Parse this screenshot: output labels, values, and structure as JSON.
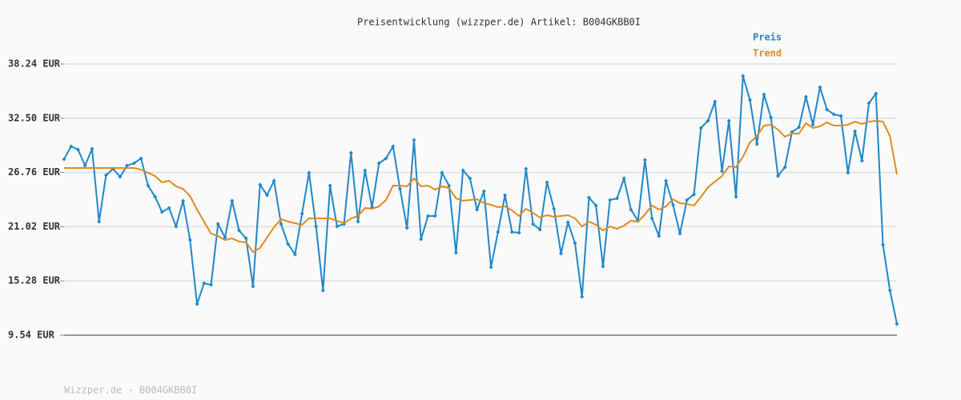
{
  "chart_data": {
    "type": "line",
    "title": "Preisentwicklung (wizzper.de) Artikel: B004GKBB0I",
    "footer": "Wizzper.de - B004GKBB0I",
    "ylim": [
      9.54,
      38.24
    ],
    "yticks": [
      {
        "value": 9.54,
        "label": "9.54 EUR"
      },
      {
        "value": 15.28,
        "label": "15.28 EUR"
      },
      {
        "value": 21.02,
        "label": "21.02 EUR"
      },
      {
        "value": 26.76,
        "label": "26.76 EUR"
      },
      {
        "value": 32.5,
        "label": "32.50 EUR"
      },
      {
        "value": 38.24,
        "label": "38.24 EUR"
      }
    ],
    "grid": true,
    "legend": "top-right",
    "series": [
      {
        "name": "Preis",
        "color": "#1f87c8",
        "markers": true,
        "values": [
          28.17,
          29.52,
          29.18,
          27.49,
          29.27,
          21.56,
          26.47,
          27.15,
          26.3,
          27.49,
          27.74,
          28.25,
          25.37,
          24.19,
          22.58,
          23.0,
          21.05,
          23.76,
          19.61,
          12.84,
          15.04,
          14.87,
          21.31,
          19.87,
          23.76,
          20.63,
          19.78,
          14.7,
          25.46,
          24.36,
          25.88,
          21.31,
          19.19,
          18.09,
          22.41,
          26.73,
          21.05,
          14.28,
          25.37,
          21.05,
          21.31,
          28.84,
          21.56,
          26.98,
          23.09,
          27.74,
          28.25,
          29.52,
          25.03,
          20.88,
          30.2,
          19.7,
          22.15,
          22.15,
          26.73,
          25.37,
          18.26,
          26.98,
          26.13,
          22.83,
          24.78,
          16.74,
          20.46,
          24.36,
          20.46,
          20.38,
          27.15,
          21.31,
          20.72,
          25.71,
          22.92,
          18.18,
          21.48,
          19.28,
          13.6,
          24.1,
          23.26,
          16.82,
          23.85,
          24.02,
          26.13,
          22.83,
          21.65,
          28.08,
          21.9,
          20.04,
          25.88,
          23.34,
          20.29,
          23.85,
          24.44,
          31.47,
          32.23,
          34.26,
          26.9,
          32.23,
          24.19,
          36.97,
          34.43,
          29.77,
          35.02,
          32.57,
          26.39,
          27.32,
          31.04,
          31.55,
          34.77,
          31.81,
          35.78,
          33.41,
          32.91,
          32.74,
          26.73,
          31.13,
          28.0,
          34.09,
          35.11,
          19.11,
          14.28,
          10.73
        ]
      },
      {
        "name": "Trend",
        "color": "#e08a1e",
        "markers": false,
        "values": [
          27.23,
          27.23,
          27.23,
          27.23,
          27.23,
          27.23,
          27.23,
          27.23,
          27.23,
          27.23,
          27.23,
          27.06,
          26.73,
          26.39,
          25.71,
          25.88,
          25.29,
          25.03,
          24.27,
          22.83,
          21.56,
          20.29,
          20.04,
          19.61,
          19.78,
          19.45,
          19.36,
          18.34,
          18.77,
          19.87,
          20.97,
          21.82,
          21.56,
          21.39,
          21.22,
          21.9,
          21.9,
          21.9,
          21.9,
          21.65,
          21.39,
          21.9,
          22.15,
          23.0,
          22.92,
          23.17,
          23.85,
          25.37,
          25.37,
          25.29,
          26.13,
          25.29,
          25.37,
          24.95,
          25.29,
          25.12,
          24.02,
          23.76,
          23.85,
          23.93,
          23.51,
          23.34,
          23.09,
          23.17,
          22.75,
          22.15,
          22.92,
          22.49,
          21.99,
          22.24,
          22.07,
          22.15,
          22.24,
          21.9,
          21.05,
          21.56,
          21.22,
          20.63,
          21.05,
          20.8,
          21.14,
          21.65,
          21.56,
          22.32,
          23.26,
          22.83,
          23.17,
          23.93,
          23.51,
          23.42,
          23.26,
          24.19,
          25.2,
          25.79,
          26.39,
          27.4,
          27.32,
          28.42,
          29.94,
          30.62,
          31.72,
          31.81,
          31.3,
          30.54,
          30.87,
          30.87,
          31.98,
          31.47,
          31.64,
          32.06,
          31.72,
          31.72,
          31.81,
          32.14,
          31.89,
          32.14,
          32.23,
          32.14,
          30.62,
          26.56
        ]
      }
    ]
  }
}
